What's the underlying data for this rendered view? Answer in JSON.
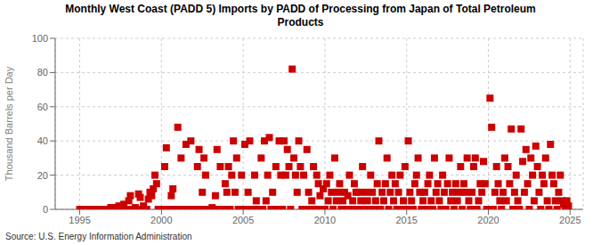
{
  "chart_data": {
    "type": "scatter",
    "title": "Monthly West Coast (PADD 5) Imports by PADD of Processing from Japan of Total Petroleum\nProducts",
    "ylabel": "Thousand Barrels per Day",
    "annotations": [
      "Source: U.S. Energy Information Administration"
    ],
    "color": "#cc0000",
    "marker": "square",
    "grid": true,
    "xlim": [
      1993.5,
      2025.8
    ],
    "ylim": [
      0,
      100
    ],
    "yticks": [
      0,
      20,
      40,
      60,
      80,
      100
    ],
    "xticks": [
      1995,
      2000,
      2005,
      2010,
      2015,
      2020,
      2025
    ],
    "x": [
      1995.0,
      1995.1,
      1995.2,
      1995.3,
      1995.4,
      1995.5,
      1995.6,
      1995.7,
      1995.8,
      1995.9,
      1996.0,
      1996.1,
      1996.2,
      1996.3,
      1996.4,
      1996.5,
      1996.6,
      1996.7,
      1996.8,
      1996.9,
      1997.0,
      1997.1,
      1997.2,
      1997.3,
      1997.4,
      1997.5,
      1997.6,
      1997.7,
      1997.8,
      1997.9,
      1998.0,
      1998.1,
      1998.2,
      1998.3,
      1998.4,
      1998.5,
      1998.6,
      1998.7,
      1998.8,
      1998.9,
      1999.0,
      1999.1,
      1999.2,
      1999.3,
      1999.4,
      1999.5,
      1999.6,
      1999.7,
      1999.8,
      1999.9,
      2000.0,
      2000.1,
      2000.2,
      2000.3,
      2000.4,
      2000.5,
      2000.6,
      2000.7,
      2000.8,
      2000.9,
      2001.0,
      2001.1,
      2001.2,
      2001.3,
      2001.4,
      2001.5,
      2001.6,
      2001.7,
      2001.8,
      2001.9,
      2002.0,
      2002.1,
      2002.2,
      2002.3,
      2002.4,
      2002.5,
      2002.6,
      2002.7,
      2002.8,
      2002.9,
      2003.0,
      2003.1,
      2003.2,
      2003.3,
      2003.4,
      2003.5,
      2003.6,
      2003.7,
      2003.8,
      2003.9,
      2004.0,
      2004.1,
      2004.2,
      2004.3,
      2004.4,
      2004.5,
      2004.6,
      2004.7,
      2004.8,
      2004.9,
      2005.0,
      2005.1,
      2005.2,
      2005.3,
      2005.4,
      2005.5,
      2005.6,
      2005.7,
      2005.8,
      2005.9,
      2006.0,
      2006.1,
      2006.2,
      2006.3,
      2006.4,
      2006.5,
      2006.6,
      2006.7,
      2006.8,
      2006.9,
      2007.0,
      2007.1,
      2007.2,
      2007.3,
      2007.4,
      2007.5,
      2007.6,
      2007.7,
      2007.8,
      2007.9,
      2008.0,
      2008.1,
      2008.2,
      2008.3,
      2008.4,
      2008.5,
      2008.6,
      2008.7,
      2008.8,
      2008.9,
      2009.0,
      2009.1,
      2009.2,
      2009.3,
      2009.4,
      2009.5,
      2009.6,
      2009.7,
      2009.8,
      2009.9,
      2010.0,
      2010.1,
      2010.2,
      2010.3,
      2010.4,
      2010.5,
      2010.6,
      2010.7,
      2010.8,
      2010.9,
      2011.0,
      2011.1,
      2011.2,
      2011.3,
      2011.4,
      2011.5,
      2011.6,
      2011.7,
      2011.8,
      2011.9,
      2012.0,
      2012.1,
      2012.2,
      2012.3,
      2012.4,
      2012.5,
      2012.6,
      2012.7,
      2012.8,
      2012.9,
      2013.0,
      2013.1,
      2013.2,
      2013.3,
      2013.4,
      2013.5,
      2013.6,
      2013.7,
      2013.8,
      2013.9,
      2014.0,
      2014.1,
      2014.2,
      2014.3,
      2014.4,
      2014.5,
      2014.6,
      2014.7,
      2014.8,
      2014.9,
      2015.0,
      2015.1,
      2015.2,
      2015.3,
      2015.4,
      2015.5,
      2015.6,
      2015.7,
      2015.8,
      2015.9,
      2016.0,
      2016.1,
      2016.2,
      2016.3,
      2016.4,
      2016.5,
      2016.6,
      2016.7,
      2016.8,
      2016.9,
      2017.0,
      2017.1,
      2017.2,
      2017.3,
      2017.4,
      2017.5,
      2017.6,
      2017.7,
      2017.8,
      2017.9,
      2018.0,
      2018.1,
      2018.2,
      2018.3,
      2018.4,
      2018.5,
      2018.6,
      2018.7,
      2018.8,
      2018.9,
      2019.0,
      2019.1,
      2019.2,
      2019.3,
      2019.4,
      2019.5,
      2019.6,
      2019.7,
      2019.8,
      2019.9,
      2020.0,
      2020.1,
      2020.2,
      2020.3,
      2020.4,
      2020.5,
      2020.6,
      2020.7,
      2020.8,
      2020.9,
      2021.0,
      2021.1,
      2021.2,
      2021.3,
      2021.4,
      2021.5,
      2021.6,
      2021.7,
      2021.8,
      2021.9,
      2022.0,
      2022.1,
      2022.2,
      2022.3,
      2022.4,
      2022.5,
      2022.6,
      2022.7,
      2022.8,
      2022.9,
      2023.0,
      2023.1,
      2023.2,
      2023.3,
      2023.4,
      2023.5,
      2023.6,
      2023.7,
      2023.8,
      2023.9,
      2024.0,
      2024.1,
      2024.2,
      2024.3,
      2024.4,
      2024.5,
      2024.6,
      2024.7,
      2024.8,
      2024.9
    ],
    "values": [
      0,
      0,
      0,
      0,
      0,
      0,
      0,
      0,
      0,
      0,
      0,
      0,
      0,
      0,
      0,
      0,
      0,
      0,
      0,
      1,
      1,
      0,
      0,
      1,
      2,
      0,
      0,
      3,
      0,
      0,
      5,
      8,
      0,
      0,
      1,
      0,
      9,
      7,
      0,
      2,
      0,
      0,
      6,
      10,
      8,
      12,
      20,
      15,
      0,
      0,
      0,
      0,
      25,
      36,
      0,
      0,
      8,
      12,
      0,
      0,
      48,
      0,
      30,
      0,
      0,
      38,
      0,
      0,
      40,
      0,
      0,
      0,
      25,
      35,
      0,
      10,
      30,
      20,
      0,
      0,
      0,
      1,
      0,
      8,
      35,
      0,
      25,
      0,
      0,
      15,
      10,
      25,
      0,
      20,
      40,
      10,
      30,
      0,
      0,
      20,
      0,
      38,
      0,
      10,
      40,
      0,
      0,
      20,
      5,
      0,
      0,
      30,
      0,
      40,
      5,
      20,
      42,
      0,
      10,
      0,
      25,
      0,
      40,
      20,
      0,
      40,
      20,
      35,
      25,
      0,
      82,
      30,
      20,
      10,
      40,
      25,
      0,
      20,
      0,
      35,
      10,
      0,
      5,
      25,
      0,
      20,
      15,
      8,
      0,
      12,
      0,
      15,
      5,
      20,
      10,
      0,
      30,
      5,
      10,
      15,
      0,
      5,
      10,
      0,
      8,
      20,
      0,
      5,
      15,
      10,
      0,
      10,
      5,
      25,
      0,
      10,
      5,
      0,
      20,
      10,
      0,
      5,
      15,
      40,
      0,
      10,
      5,
      15,
      30,
      0,
      10,
      20,
      5,
      15,
      0,
      10,
      20,
      0,
      5,
      25,
      0,
      40,
      10,
      5,
      0,
      15,
      20,
      30,
      10,
      0,
      5,
      10,
      0,
      15,
      20,
      5,
      0,
      30,
      10,
      15,
      5,
      0,
      20,
      10,
      0,
      15,
      30,
      5,
      10,
      0,
      15,
      5,
      10,
      25,
      0,
      15,
      10,
      30,
      5,
      0,
      10,
      25,
      30,
      0,
      5,
      15,
      10,
      28,
      15,
      0,
      0,
      65,
      48,
      0,
      10,
      25,
      15,
      5,
      0,
      10,
      30,
      5,
      25,
      15,
      47,
      0,
      10,
      20,
      5,
      0,
      47,
      28,
      10,
      35,
      15,
      0,
      30,
      20,
      5,
      37,
      25,
      10,
      0,
      20,
      15,
      30,
      5,
      0,
      38,
      20,
      15,
      5,
      0,
      10,
      20,
      5,
      3,
      0,
      5,
      2
    ]
  }
}
